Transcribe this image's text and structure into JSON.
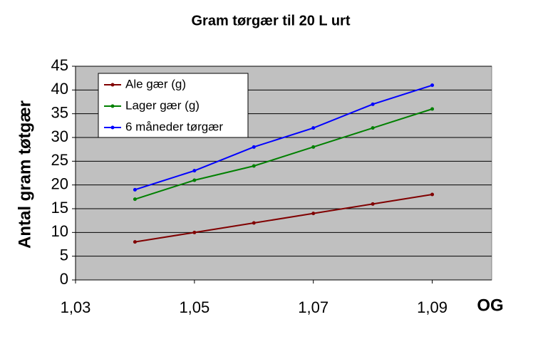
{
  "chart_data": {
    "type": "line",
    "title": "Gram tørgær til 20 L urt",
    "ylabel": "Antal gram tøtgær",
    "xlabel": "OG",
    "x": [
      1.04,
      1.05,
      1.06,
      1.07,
      1.08,
      1.09
    ],
    "series": [
      {
        "name": "Ale gær (g)",
        "color": "#800000",
        "values": [
          8,
          10,
          12,
          14,
          16,
          18
        ]
      },
      {
        "name": "Lager gær (g)",
        "color": "#008000",
        "values": [
          17,
          21,
          24,
          28,
          32,
          36
        ]
      },
      {
        "name": "6 måneder tørgær",
        "color": "#0000ff",
        "values": [
          19,
          23,
          28,
          32,
          37,
          41
        ]
      }
    ],
    "xlim": [
      1.03,
      1.1
    ],
    "xticks": [
      {
        "value": 1.03,
        "label": "1,03"
      },
      {
        "value": 1.05,
        "label": "1,05"
      },
      {
        "value": 1.07,
        "label": "1,07"
      },
      {
        "value": 1.09,
        "label": "1,09"
      }
    ],
    "ylim": [
      0,
      45
    ],
    "yticks": [
      0,
      5,
      10,
      15,
      20,
      25,
      30,
      35,
      40,
      45
    ],
    "grid": true,
    "legend": "top-left",
    "plot_background": "#c0c0c0"
  }
}
